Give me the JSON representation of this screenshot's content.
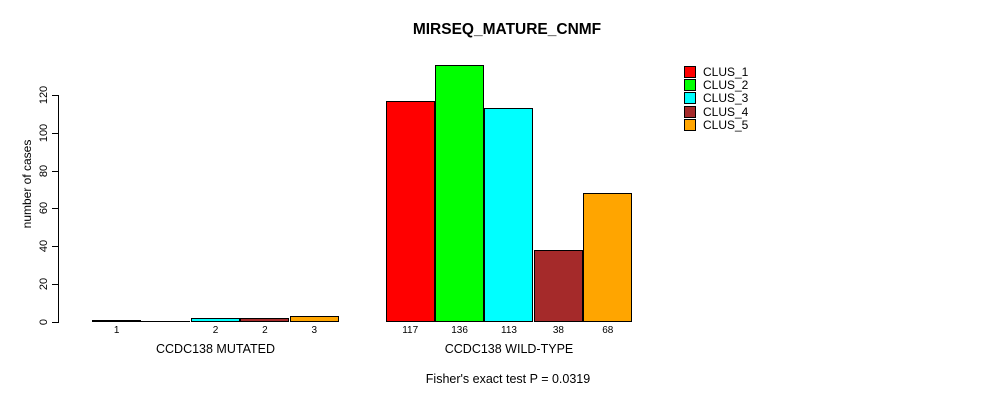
{
  "title": "MIRSEQ_MATURE_CNMF",
  "footer": "Fisher's exact test P = 0.0319",
  "chart_data": {
    "type": "bar",
    "title": "MIRSEQ_MATURE_CNMF",
    "ylabel": "number of cases",
    "xlabel": "",
    "ylim": [
      0,
      120
    ],
    "y_ticks": [
      0,
      20,
      40,
      60,
      80,
      100,
      120
    ],
    "grid": false,
    "legend_position": "top-right",
    "series_names": [
      "CLUS_1",
      "CLUS_2",
      "CLUS_3",
      "CLUS_4",
      "CLUS_5"
    ],
    "colors": [
      "#FF0000",
      "#00FF00",
      "#00FFFF",
      "#A52A2A",
      "#FFA500"
    ],
    "groups": [
      {
        "label": "CCDC138 MUTATED",
        "values": [
          1,
          0,
          2,
          2,
          3
        ],
        "bar_labels": [
          "1",
          "",
          "2",
          "2",
          "3"
        ]
      },
      {
        "label": "CCDC138 WILD-TYPE",
        "values": [
          117,
          136,
          113,
          38,
          68
        ],
        "bar_labels": [
          "117",
          "136",
          "113",
          "38",
          "68"
        ]
      }
    ],
    "annotation": "Fisher's exact test P = 0.0319"
  },
  "legend": {
    "items": [
      {
        "label": "CLUS_1",
        "color": "#FF0000"
      },
      {
        "label": "CLUS_2",
        "color": "#00FF00"
      },
      {
        "label": "CLUS_3",
        "color": "#00FFFF"
      },
      {
        "label": "CLUS_4",
        "color": "#A52A2A"
      },
      {
        "label": "CLUS_5",
        "color": "#FFA500"
      }
    ]
  }
}
